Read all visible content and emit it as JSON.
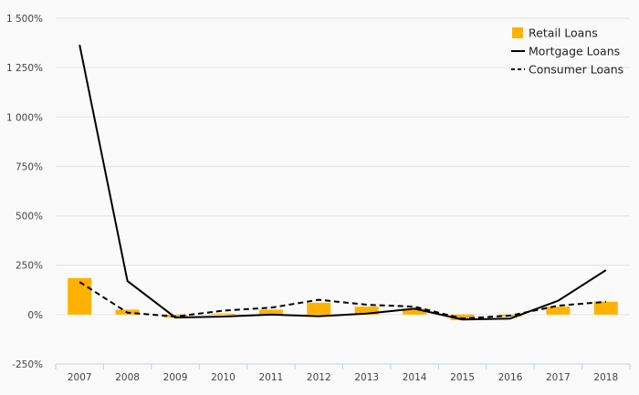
{
  "chart_data": {
    "type": "bar",
    "title": "",
    "xlabel": "",
    "ylabel": "",
    "categories": [
      "2007",
      "2008",
      "2009",
      "2010",
      "2011",
      "2012",
      "2013",
      "2014",
      "2015",
      "2016",
      "2017",
      "2018"
    ],
    "ylim": [
      -250,
      1500
    ],
    "yticks": [
      -250,
      0,
      250,
      500,
      750,
      1000,
      1250,
      1500
    ],
    "ytick_labels": [
      "-250%",
      "0%",
      "250%",
      "500%",
      "750%",
      "1 000%",
      "1 250%",
      "1 500%"
    ],
    "grid": true,
    "legend_position": "top-right",
    "series": [
      {
        "name": "Retail Loans",
        "kind": "bar",
        "color": "#FFB200",
        "values": [
          185,
          25,
          -15,
          5,
          25,
          60,
          40,
          30,
          -28,
          -10,
          40,
          65
        ]
      },
      {
        "name": "Mortgage Loans",
        "kind": "line",
        "dash": "solid",
        "color": "#000000",
        "values": [
          1365,
          170,
          -15,
          -10,
          0,
          -8,
          5,
          30,
          -25,
          -20,
          70,
          225
        ]
      },
      {
        "name": "Consumer Loans",
        "kind": "line",
        "dash": "dashed",
        "color": "#000000",
        "values": [
          165,
          10,
          -10,
          20,
          35,
          75,
          50,
          40,
          -20,
          -5,
          45,
          65
        ]
      }
    ]
  }
}
